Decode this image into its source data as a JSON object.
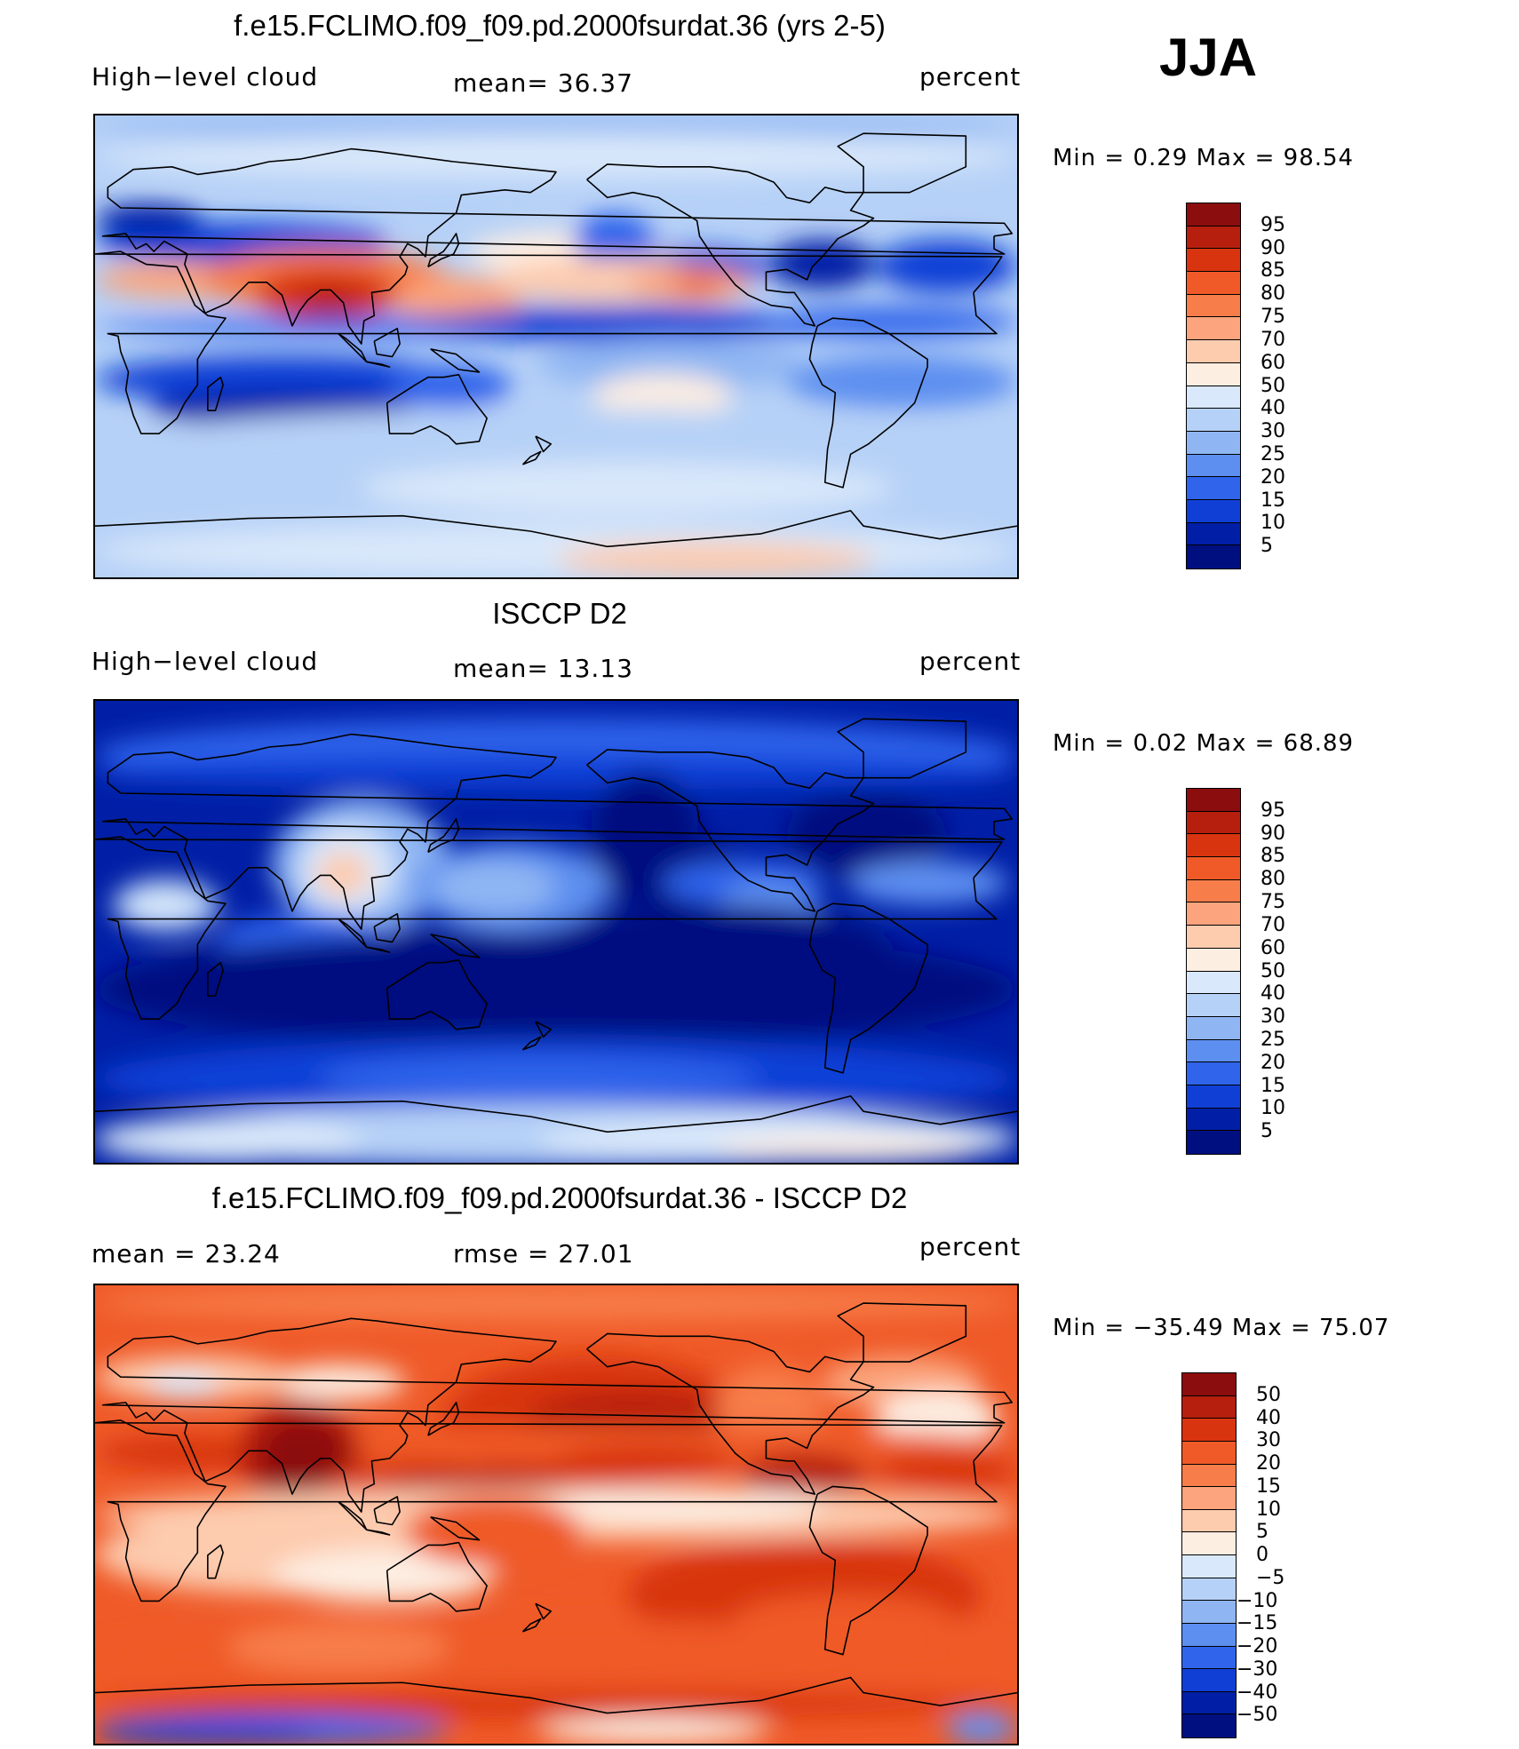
{
  "season": "JJA",
  "panels": [
    {
      "title": "f.e15.FCLIMO.f09_f09.pd.2000fsurdat.36 (yrs 2-5)",
      "left_label": "High−level cloud",
      "center_label": "mean=   36.37",
      "right_label": "percent",
      "stats": "Min =    0.29  Max =    98.54",
      "colorbar_ticks": [
        "95",
        "90",
        "85",
        "80",
        "75",
        "70",
        "60",
        "50",
        "40",
        "30",
        "25",
        "20",
        "15",
        "10",
        "5"
      ],
      "colorbar_colors": [
        "#8c0d0d",
        "#b61f0e",
        "#d8340f",
        "#ef5a28",
        "#f77d4a",
        "#fba47d",
        "#fdcbae",
        "#fdeee2",
        "#d9e8fa",
        "#b6d1f7",
        "#8fb6f3",
        "#5d8ff0",
        "#2f64eb",
        "#103fd6",
        "#001fa6",
        "#000f80"
      ],
      "map_style": "model"
    },
    {
      "title": "ISCCP D2",
      "left_label": "High−level cloud",
      "center_label": "mean=   13.13",
      "right_label": "percent",
      "stats": "Min =    0.02  Max =    68.89",
      "colorbar_ticks": [
        "95",
        "90",
        "85",
        "80",
        "75",
        "70",
        "60",
        "50",
        "40",
        "30",
        "25",
        "20",
        "15",
        "10",
        "5"
      ],
      "colorbar_colors": [
        "#8c0d0d",
        "#b61f0e",
        "#d8340f",
        "#ef5a28",
        "#f77d4a",
        "#fba47d",
        "#fdcbae",
        "#fdeee2",
        "#d9e8fa",
        "#b6d1f7",
        "#8fb6f3",
        "#5d8ff0",
        "#2f64eb",
        "#103fd6",
        "#001fa6",
        "#000f80"
      ],
      "map_style": "obs"
    },
    {
      "title": "f.e15.FCLIMO.f09_f09.pd.2000fsurdat.36 - ISCCP D2",
      "left_label": "mean =   23.24",
      "center_label": "rmse =   27.01",
      "right_label": "percent",
      "stats": "Min = −35.49  Max =   75.07",
      "colorbar_ticks": [
        "50",
        "40",
        "30",
        "20",
        "15",
        "10",
        "5",
        "0",
        "−5",
        "−10",
        "−15",
        "−20",
        "−30",
        "−40",
        "−50"
      ],
      "colorbar_colors": [
        "#8c0d0d",
        "#b61f0e",
        "#d8340f",
        "#ef5a28",
        "#f77d4a",
        "#fba47d",
        "#fdcbae",
        "#fdeee2",
        "#d9e8fa",
        "#b6d1f7",
        "#8fb6f3",
        "#5d8ff0",
        "#2f64eb",
        "#103fd6",
        "#001fa6",
        "#000f80"
      ],
      "map_style": "diff"
    }
  ]
}
